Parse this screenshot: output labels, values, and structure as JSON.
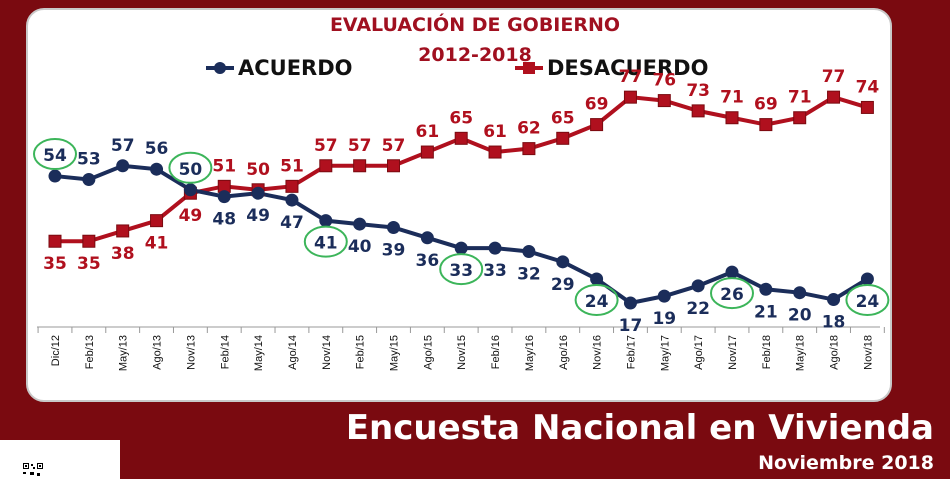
{
  "chart_data": {
    "type": "line",
    "title": "EVALUACIÓN DE GOBIERNO",
    "subtitle": "2012-2018",
    "categories": [
      "Dic/12",
      "Feb/13",
      "May/13",
      "Ago/13",
      "Nov/13",
      "Feb/14",
      "May/14",
      "Ago/14",
      "Nov/14",
      "Feb/15",
      "May/15",
      "Ago/15",
      "Nov/15",
      "Feb/16",
      "May/16",
      "Ago/16",
      "Nov/16",
      "Feb/17",
      "May/17",
      "Ago/17",
      "Nov/17",
      "Feb/18",
      "May/18",
      "Ago/18",
      "Nov/18"
    ],
    "series": [
      {
        "name": "ACUERDO",
        "color": "#1b2d5a",
        "values": [
          54,
          53,
          57,
          56,
          50,
          48,
          49,
          47,
          41,
          40,
          39,
          36,
          33,
          33,
          32,
          29,
          24,
          17,
          19,
          22,
          26,
          21,
          20,
          18,
          24
        ]
      },
      {
        "name": "DESACUERDO",
        "color": "#b0101e",
        "values": [
          35,
          35,
          38,
          41,
          49,
          51,
          50,
          51,
          57,
          57,
          57,
          61,
          65,
          61,
          62,
          65,
          69,
          77,
          76,
          73,
          71,
          69,
          71,
          77,
          74
        ]
      }
    ],
    "highlighted_acuerdo": [
      "Dic/12",
      "Nov/13",
      "Nov/14",
      "Nov/15",
      "Nov/16",
      "Nov/17",
      "Nov/18"
    ],
    "highlight_color": "#3cb55a",
    "ylim": [
      10,
      82
    ],
    "grid": false,
    "legend": "top"
  },
  "footer": {
    "line1": "Encuesta Nacional  en Vivienda",
    "line2": "Noviembre 2018"
  }
}
